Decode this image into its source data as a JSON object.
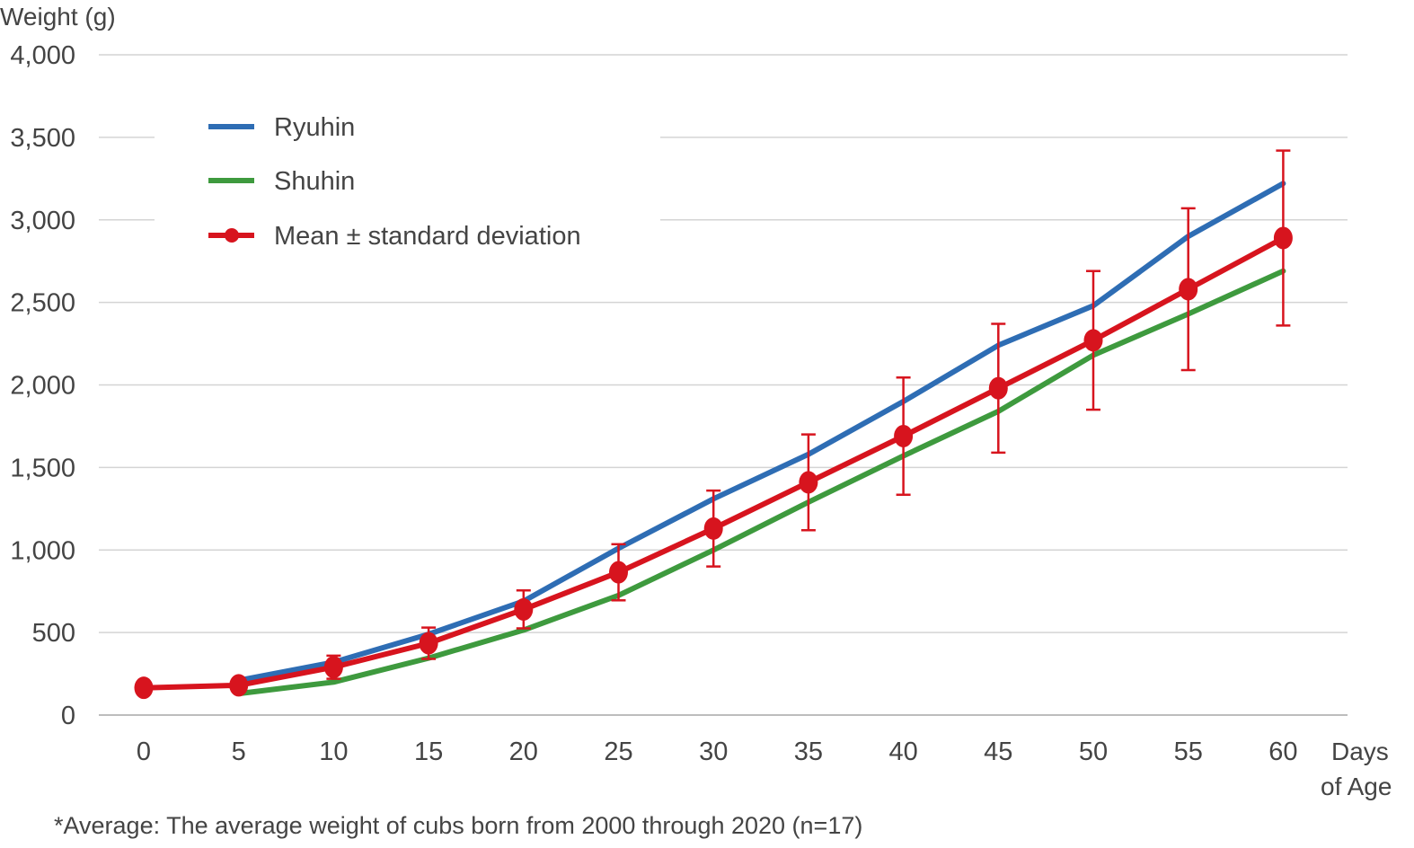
{
  "chart_data": {
    "type": "line",
    "ylabel": "Weight (g)",
    "xlabel_line1": "Days",
    "xlabel_line2": "of Age",
    "x": [
      0,
      5,
      10,
      15,
      20,
      25,
      30,
      35,
      40,
      45,
      50,
      55,
      60
    ],
    "ylim": [
      0,
      4000
    ],
    "yticks": [
      0,
      500,
      1000,
      1500,
      2000,
      2500,
      3000,
      3500,
      4000
    ],
    "ytick_labels": [
      "0",
      "500",
      "1,000",
      "1,500",
      "2,000",
      "2,500",
      "3,000",
      "3,500",
      "4,000"
    ],
    "xtick_labels": [
      "0",
      "5",
      "10",
      "15",
      "20",
      "25",
      "30",
      "35",
      "40",
      "45",
      "50",
      "55",
      "60"
    ],
    "grid": true,
    "legend_position": "top-left",
    "series": [
      {
        "name": "Ryuhin",
        "color": "#2e6db4",
        "x": [
          5,
          10,
          15,
          20,
          25,
          30,
          35,
          40,
          45,
          50,
          55,
          60
        ],
        "values": [
          210,
          320,
          490,
          690,
          1010,
          1310,
          1580,
          1900,
          2240,
          2480,
          2900,
          3220
        ]
      },
      {
        "name": "Shuhin",
        "color": "#3e9a3e",
        "x": [
          5,
          10,
          15,
          20,
          25,
          30,
          35,
          40,
          45,
          50,
          55,
          60
        ],
        "values": [
          130,
          200,
          345,
          515,
          725,
          1000,
          1290,
          1570,
          1840,
          2180,
          2430,
          2690
        ]
      },
      {
        "name": "Mean ± standard deviation",
        "color": "#d7141e",
        "markers": true,
        "x": [
          0,
          5,
          10,
          15,
          20,
          25,
          30,
          35,
          40,
          45,
          50,
          55,
          60
        ],
        "values": [
          165,
          180,
          290,
          435,
          640,
          865,
          1130,
          1410,
          1690,
          1980,
          2270,
          2580,
          2890
        ],
        "error": [
          null,
          35,
          70,
          95,
          115,
          170,
          230,
          290,
          355,
          390,
          420,
          490,
          530
        ]
      }
    ],
    "footnote": "*Average: The average weight of cubs born from 2000 through 2020 (n=17)"
  }
}
